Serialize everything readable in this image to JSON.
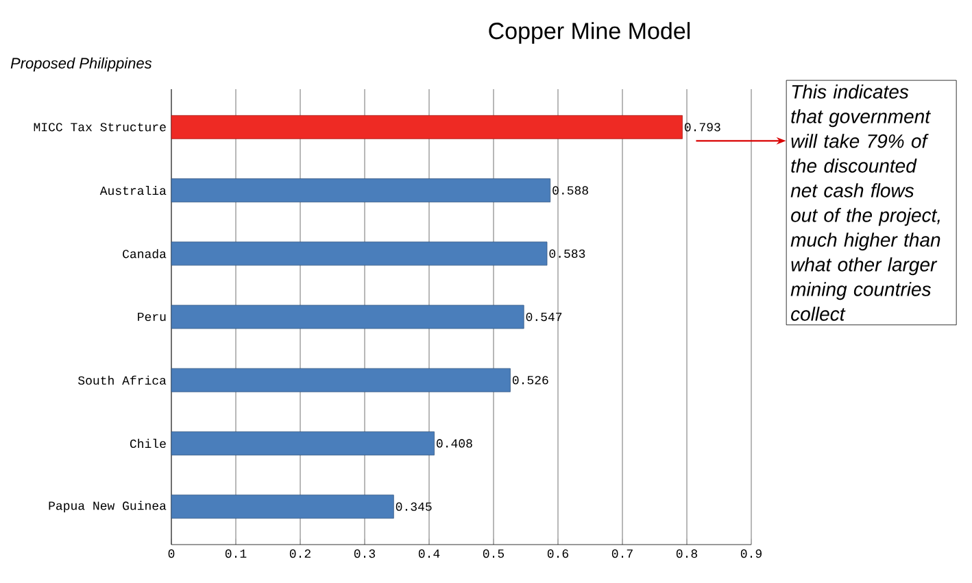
{
  "chart_data": {
    "type": "bar",
    "orientation": "horizontal",
    "title": "Copper Mine Model",
    "subtitle": "Proposed Philippines",
    "categories": [
      "MICC Tax Structure",
      "Australia",
      "Canada",
      "Peru",
      "South Africa",
      "Chile",
      "Papua New Guinea"
    ],
    "values": [
      0.793,
      0.588,
      0.583,
      0.547,
      0.526,
      0.408,
      0.345
    ],
    "colors": [
      "#ee2a24",
      "#4a7ebb",
      "#4a7ebb",
      "#4a7ebb",
      "#4a7ebb",
      "#4a7ebb",
      "#4a7ebb"
    ],
    "xlim": [
      0,
      0.9
    ],
    "xticks": [
      0,
      0.1,
      0.2,
      0.3,
      0.4,
      0.5,
      0.6,
      0.7,
      0.8,
      0.9
    ],
    "grid": "x",
    "data_labels": true,
    "annotations": [
      "This indicates that government will take 79% of the discounted net cash flows out of the project, much higher than what other larger mining countries collect"
    ]
  }
}
